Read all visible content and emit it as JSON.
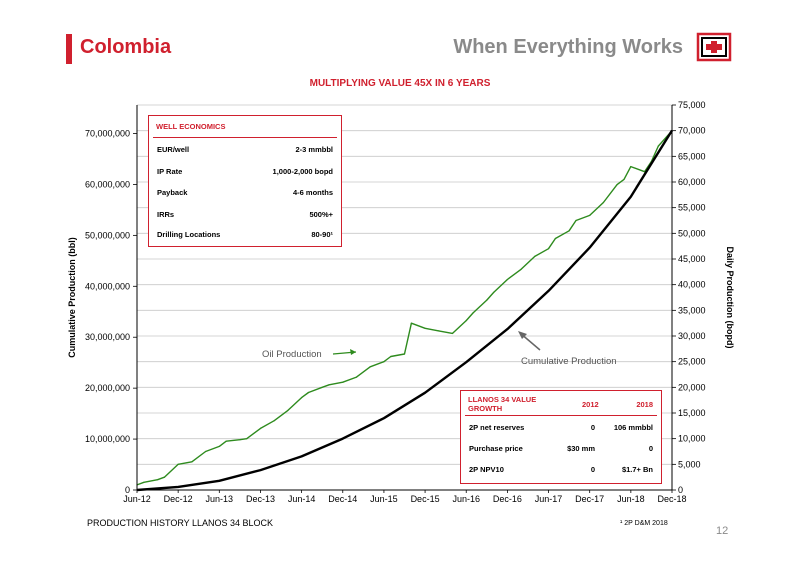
{
  "header": {
    "left_title": "Colombia",
    "right_title": "When Everything Works",
    "logo_icon": "company-logo-icon"
  },
  "subtitle": "MULTIPLYING VALUE 45X IN 6 YEARS",
  "footer": {
    "caption": "PRODUCTION HISTORY LLANOS 34 BLOCK",
    "footnote": "¹ 2P D&M 2018",
    "page_number": "12"
  },
  "colors": {
    "brand_red": "#d0202e",
    "oil_line": "#2e8b1e",
    "cumulative_line": "#000000"
  },
  "well_economics": {
    "title": "WELL ECONOMICS",
    "rows": [
      {
        "label": "EUR/well",
        "value": "2-3 mmbbl"
      },
      {
        "label": "IP Rate",
        "value": "1,000-2,000 bopd"
      },
      {
        "label": "Payback",
        "value": "4-6 months"
      },
      {
        "label": "IRRs",
        "value": "500%+"
      },
      {
        "label": "Drilling Locations",
        "value": "80-90¹"
      }
    ]
  },
  "value_growth": {
    "title_line1": "LLANOS 34 VALUE",
    "title_line2": "GROWTH",
    "col1": "2012",
    "col2": "2018",
    "rows": [
      {
        "label": "2P net reserves",
        "v2012": "0",
        "v2018": "106 mmbbl"
      },
      {
        "label": "Purchase price",
        "v2012": "$30 mm",
        "v2018": "0"
      },
      {
        "label": "2P NPV10",
        "v2012": "0",
        "v2018": "$1.7+ Bn"
      }
    ]
  },
  "chart_data": {
    "type": "line",
    "xlabel": "",
    "ylabel": "Cumulative Production (bbl)",
    "y2label": "Daily Production (bopd)",
    "x_ticks": [
      "Jun-12",
      "Dec-12",
      "Jun-13",
      "Dec-13",
      "Jun-14",
      "Dec-14",
      "Jun-15",
      "Dec-15",
      "Jun-16",
      "Dec-16",
      "Jun-17",
      "Dec-17",
      "Jun-18",
      "Dec-18"
    ],
    "y_ticks": [
      "0",
      "10,000,000",
      "20,000,000",
      "30,000,000",
      "40,000,000",
      "50,000,000",
      "60,000,000",
      "70,000,000"
    ],
    "y2_ticks": [
      "0",
      "5,000",
      "10,000",
      "15,000",
      "20,000",
      "25,000",
      "30,000",
      "35,000",
      "40,000",
      "45,000",
      "50,000",
      "55,000",
      "60,000",
      "65,000",
      "70,000",
      "75,000"
    ],
    "ylim": [
      0,
      75600000
    ],
    "y2lim": [
      0,
      75000
    ],
    "grid": true,
    "annotations": [
      "Oil Production",
      "Cumulative Production"
    ],
    "series": [
      {
        "axis": "right",
        "color": "#2e8b1e",
        "x": [
          "Jun-12",
          "Jul-12",
          "Sep-12",
          "Oct-12",
          "Dec-12",
          "Feb-13",
          "Apr-13",
          "Jun-13",
          "Jul-13",
          "Sep-13",
          "Oct-13",
          "Dec-13",
          "Feb-14",
          "Apr-14",
          "Jun-14",
          "Jul-14",
          "Sep-14",
          "Oct-14",
          "Dec-14",
          "Feb-15",
          "Apr-15",
          "Jun-15",
          "Jul-15",
          "Sep-15",
          "Oct-15",
          "Dec-15",
          "Feb-16",
          "Apr-16",
          "Jun-16",
          "Jul-16",
          "Sep-16",
          "Oct-16",
          "Dec-16",
          "Feb-17",
          "Apr-17",
          "Jun-17",
          "Jul-17",
          "Sep-17",
          "Oct-17",
          "Dec-17",
          "Feb-18",
          "Apr-18",
          "May-18",
          "Jun-18",
          "Aug-18",
          "Sep-18",
          "Oct-18",
          "Dec-18"
        ],
        "values": [
          1000,
          1500,
          2000,
          2500,
          5000,
          5500,
          7500,
          8500,
          9500,
          9800,
          10000,
          12000,
          13500,
          15500,
          18000,
          19000,
          20000,
          20500,
          21000,
          22000,
          24000,
          25000,
          26000,
          26500,
          32500,
          31500,
          31000,
          30500,
          33000,
          34500,
          37000,
          38500,
          41000,
          43000,
          45500,
          47000,
          49000,
          50500,
          52500,
          53500,
          56000,
          59500,
          60500,
          63000,
          62000,
          64000,
          67000,
          70000
        ]
      },
      {
        "axis": "left",
        "name": "Cumulative Production",
        "color": "#000000",
        "x": [
          "Jun-12",
          "Dec-12",
          "Jun-13",
          "Dec-13",
          "Jun-14",
          "Dec-14",
          "Jun-15",
          "Dec-15",
          "Jun-16",
          "Dec-16",
          "Jun-17",
          "Dec-17",
          "Jun-18",
          "Dec-18"
        ],
        "values": [
          0,
          600000,
          1800000,
          3900000,
          6600000,
          10100000,
          14100000,
          19100000,
          25100000,
          31600000,
          39100000,
          47600000,
          57600000,
          70600000
        ]
      }
    ]
  }
}
